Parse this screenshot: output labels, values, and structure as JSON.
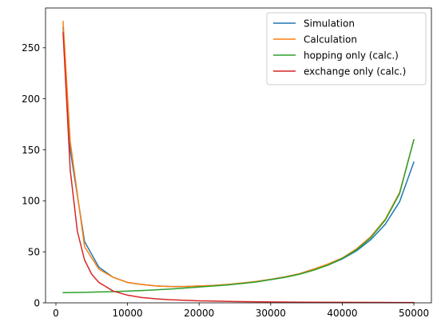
{
  "chart_data": {
    "type": "line",
    "title": "",
    "xlabel": "",
    "ylabel": "",
    "xlim": [
      -1450,
      52450
    ],
    "ylim": [
      0,
      289
    ],
    "x_ticks": [
      0,
      10000,
      20000,
      30000,
      40000,
      50000
    ],
    "y_ticks": [
      0,
      50,
      100,
      150,
      200,
      250
    ],
    "x_tick_labels": [
      "0",
      "10000",
      "20000",
      "30000",
      "40000",
      "50000"
    ],
    "y_tick_labels": [
      "0",
      "50",
      "100",
      "150",
      "200",
      "250"
    ],
    "grid": false,
    "legend_position": "top-right",
    "series": [
      {
        "name": "Simulation",
        "color": "#1f77b4",
        "x": [
          1000,
          2000,
          4000,
          6000,
          8000,
          10000,
          12000,
          14000,
          16000,
          18000,
          20000,
          22000,
          24000,
          26000,
          28000,
          30000,
          32000,
          34000,
          36000,
          38000,
          40000,
          42000,
          44000,
          46000,
          48000,
          50000
        ],
        "y": [
          270,
          150,
          60,
          35,
          25,
          20,
          18,
          16.5,
          16,
          16,
          16.5,
          17,
          18,
          19,
          21,
          23,
          25.5,
          28.5,
          33,
          37,
          43,
          51,
          62,
          77,
          99,
          138
        ]
      },
      {
        "name": "Calculation",
        "color": "#ff7f0e",
        "x": [
          1000,
          2000,
          4000,
          6000,
          8000,
          10000,
          12000,
          14000,
          16000,
          18000,
          20000,
          22000,
          24000,
          26000,
          28000,
          30000,
          32000,
          34000,
          36000,
          38000,
          40000,
          42000,
          44000,
          46000,
          48000,
          50000
        ],
        "y": [
          276,
          158,
          55,
          33,
          25,
          20,
          18,
          16.5,
          16,
          16,
          16.5,
          17,
          18,
          19.5,
          21,
          23,
          25.5,
          28.5,
          33,
          38,
          44,
          53,
          65,
          82,
          108,
          160
        ]
      },
      {
        "name": "hopping only (calc.)",
        "color": "#2ca02c",
        "x": [
          1000,
          4000,
          8000,
          12000,
          16000,
          20000,
          24000,
          28000,
          32000,
          34000,
          36000,
          38000,
          40000,
          42000,
          44000,
          46000,
          48000,
          50000
        ],
        "y": [
          10,
          10.3,
          11,
          12,
          13.5,
          15.5,
          17.5,
          20.5,
          25,
          28,
          32,
          37,
          43.5,
          52,
          64,
          81,
          107,
          160
        ]
      },
      {
        "name": "exchange only (calc.)",
        "color": "#d62728",
        "x": [
          1000,
          2000,
          3000,
          4000,
          5000,
          6000,
          8000,
          10000,
          12000,
          14000,
          16000,
          20000,
          25000,
          30000,
          35000,
          40000,
          45000,
          50000
        ],
        "y": [
          265,
          130,
          70,
          42,
          28,
          20,
          11.5,
          7.5,
          5.2,
          3.9,
          3,
          2,
          1.3,
          0.9,
          0.6,
          0.45,
          0.35,
          0.3
        ]
      }
    ]
  }
}
